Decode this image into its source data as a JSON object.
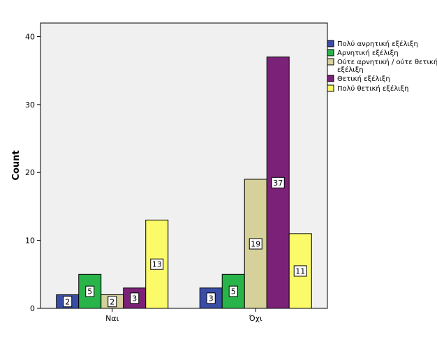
{
  "chart_data": {
    "type": "bar",
    "title": "",
    "xlabel": "",
    "ylabel": "Count",
    "ylim": [
      0,
      42
    ],
    "yticks": [
      0,
      10,
      20,
      30,
      40
    ],
    "grid": false,
    "legend_position": "right",
    "categories": [
      "Ναι",
      "Όχι"
    ],
    "series": [
      {
        "name": "Πολύ ανρητική εξέλιξη",
        "color": "#3a4da6",
        "values": [
          2,
          3
        ]
      },
      {
        "name": "Αρνητική εξέλιξη",
        "color": "#29b44a",
        "values": [
          5,
          5
        ]
      },
      {
        "name": "Ούτε αρνητική / ούτε θετική εξέλιξη",
        "color": "#d6d09a",
        "values": [
          2,
          19
        ]
      },
      {
        "name": "Θετική εξέλιξη",
        "color": "#7b2278",
        "values": [
          3,
          37
        ]
      },
      {
        "name": "Πολύ θετική εξέλιξη",
        "color": "#fbfb6a",
        "values": [
          13,
          11
        ]
      }
    ],
    "plot_background": "#f0f0f0"
  }
}
